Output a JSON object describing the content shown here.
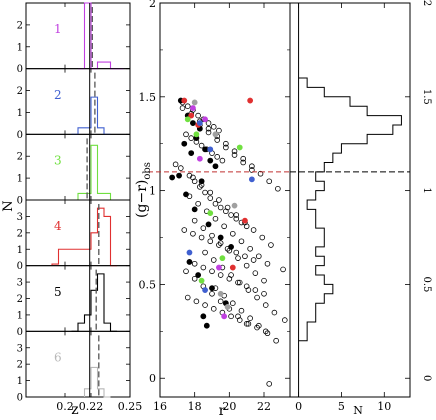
{
  "chart_data": [
    {
      "type": "bar",
      "layout": "stacked-histogram-panels",
      "title": "",
      "xlabel": "z",
      "ylabel": "N",
      "xlim": [
        0.17,
        0.25
      ],
      "x_ticks": [
        0.2,
        0.22,
        0.25
      ],
      "x_tick_labels": [
        "0.2",
        "0.22",
        "0.25"
      ],
      "bin_width": 0.005,
      "panels": [
        {
          "label": "1",
          "color": "#c040e0",
          "ylim": [
            0,
            3
          ],
          "y_ticks": [
            0,
            1,
            2
          ],
          "line_z": 0.219,
          "dash_z": 0.221,
          "bins_z": [
            0.21,
            0.215,
            0.22,
            0.225,
            0.23,
            0.235,
            0.24
          ],
          "counts": [
            0,
            3,
            0,
            0.3,
            0.3,
            0,
            0
          ]
        },
        {
          "label": "2",
          "color": "#4060d0",
          "ylim": [
            0,
            3
          ],
          "y_ticks": [
            0,
            1,
            2
          ],
          "line_z": 0.219,
          "dash_z": 0.223,
          "bins_z": [
            0.205,
            0.21,
            0.215,
            0.22,
            0.225,
            0.23
          ],
          "counts": [
            0,
            0.3,
            0.3,
            1.7,
            0.3,
            0
          ]
        },
        {
          "label": "3",
          "color": "#70e040",
          "ylim": [
            0,
            3
          ],
          "y_ticks": [
            0,
            1,
            2
          ],
          "line_z": 0.219,
          "dash_z": 0.217,
          "bins_z": [
            0.205,
            0.21,
            0.215,
            0.22,
            0.225,
            0.23,
            0.235
          ],
          "counts": [
            0,
            0.3,
            0.3,
            2.5,
            0.3,
            0.3,
            0
          ]
        },
        {
          "label": "4",
          "color": "#e03030",
          "ylim": [
            0,
            4
          ],
          "y_ticks": [
            0,
            1,
            2,
            3
          ],
          "line_z": 0.219,
          "dash_z": 0.226,
          "bins_z": [
            0.19,
            0.195,
            0.2,
            0.205,
            0.21,
            0.215,
            0.22,
            0.225,
            0.23,
            0.235
          ],
          "counts": [
            0.1,
            1,
            1,
            1,
            1,
            1,
            2,
            3.5,
            3,
            0
          ]
        },
        {
          "label": "5",
          "color": "#000000",
          "ylim": [
            0,
            4
          ],
          "y_ticks": [
            0,
            1,
            2,
            3
          ],
          "line_z": 0.219,
          "dash_z": 0.224,
          "bins_z": [
            0.205,
            0.21,
            0.215,
            0.22,
            0.225,
            0.23,
            0.235
          ],
          "counts": [
            0,
            0.5,
            1,
            2.5,
            3.5,
            0.5,
            0
          ]
        },
        {
          "label": "6",
          "color": "#b8b8b8",
          "ylim": [
            0,
            4
          ],
          "y_ticks": [
            0,
            1,
            2,
            3
          ],
          "line_z": 0.219,
          "dash_z": 0.226,
          "bins_z": [
            0.215,
            0.22,
            0.225,
            0.23
          ],
          "counts": [
            0.5,
            1.8,
            0.5,
            0
          ]
        }
      ]
    },
    {
      "type": "scatter",
      "title": "",
      "xlabel": "r",
      "ylabel": "(g−r)",
      "ylabel_subscript": "obs",
      "xlim": [
        16,
        23.5
      ],
      "ylim": [
        -0.1,
        2
      ],
      "x_ticks": [
        16,
        18,
        20,
        22
      ],
      "x_tick_labels": [
        "16",
        "18",
        "20",
        "22"
      ],
      "y_ticks": [
        0,
        0.5,
        1,
        1.5,
        2
      ],
      "y_tick_labels": [
        "0",
        "0.5",
        "1",
        "1.5",
        "2"
      ],
      "threshold_y": 1.1,
      "threshold_color": "#c03030",
      "series": [
        {
          "marker": "open-circle",
          "color": "#000000",
          "x": [
            17.3,
            17.6,
            17.9,
            18.2,
            18.5,
            18.8,
            19.1,
            19.4,
            17.5,
            17.8,
            18.1,
            18.4,
            18.7,
            19.0,
            19.3,
            19.6,
            16.9,
            17.2,
            17.7,
            18.0,
            18.3,
            18.6,
            18.9,
            19.2,
            19.5,
            19.8,
            20.1,
            20.4,
            20.7,
            21.0,
            17.4,
            17.9,
            18.4,
            18.9,
            19.4,
            19.9,
            20.4,
            20.9,
            21.4,
            18.0,
            18.5,
            19.0,
            19.5,
            20.0,
            20.5,
            21.0,
            21.5,
            22.0,
            17.6,
            18.1,
            18.6,
            19.1,
            19.6,
            20.1,
            20.6,
            21.1,
            21.6,
            22.1,
            17.3,
            17.8,
            18.3,
            18.8,
            19.3,
            19.8,
            20.3,
            20.8,
            21.3,
            21.8,
            22.3,
            22.8,
            17.7,
            18.2,
            18.7,
            19.2,
            19.7,
            20.2,
            20.7,
            21.2,
            21.7,
            22.2,
            17.5,
            18.0,
            18.5,
            19.0,
            19.5,
            20.0,
            20.5,
            21.0,
            18.3,
            18.8,
            19.3,
            19.8,
            20.3,
            20.8,
            21.3,
            17.9,
            18.4,
            18.9,
            19.4,
            19.9,
            20.4,
            20.9,
            21.4,
            21.9,
            22.4,
            18.6,
            19.1,
            19.6,
            20.1,
            20.6,
            21.1,
            21.6,
            22.1,
            22.6,
            23.2,
            18.0,
            18.5,
            19.0,
            19.5,
            20.0,
            20.5,
            21.0,
            21.5,
            22.0,
            19.2,
            19.7,
            20.2,
            20.7,
            21.2,
            21.7,
            22.2,
            22.7,
            23.1,
            22.3
          ],
          "y": [
            1.47,
            1.45,
            1.43,
            1.4,
            1.38,
            1.36,
            1.34,
            1.32,
            1.3,
            1.28,
            1.26,
            1.24,
            1.22,
            1.2,
            1.18,
            1.16,
            1.14,
            1.12,
            1.08,
            1.05,
            1.02,
            0.99,
            0.96,
            0.93,
            0.91,
            0.89,
            0.87,
            0.85,
            0.83,
            0.81,
            0.79,
            0.77,
            0.75,
            0.73,
            0.71,
            0.69,
            0.67,
            0.65,
            0.63,
            0.61,
            0.59,
            0.57,
            0.55,
            0.53,
            0.51,
            0.49,
            0.47,
            0.45,
            0.43,
            0.41,
            0.39,
            0.37,
            0.35,
            0.33,
            0.31,
            0.29,
            0.27,
            0.25,
            1.44,
            1.41,
            1.37,
            1.33,
            1.29,
            1.25,
            1.21,
            1.17,
            1.13,
            1.09,
            1.05,
            1.01,
            0.97,
            0.93,
            0.89,
            0.85,
            0.81,
            0.77,
            0.73,
            0.69,
            0.65,
            0.61,
            0.57,
            0.53,
            0.49,
            0.45,
            0.41,
            0.37,
            0.33,
            0.29,
            1.35,
            1.31,
            1.27,
            1.23,
            1.19,
            1.15,
            1.11,
            1.07,
            1.03,
            0.99,
            0.95,
            0.91,
            0.87,
            0.83,
            0.79,
            0.75,
            0.71,
            0.67,
            0.63,
            0.59,
            0.55,
            0.51,
            0.47,
            0.43,
            0.39,
            0.35,
            0.31,
            0.84,
            0.8,
            0.76,
            0.72,
            0.68,
            0.64,
            0.6,
            0.56,
            0.52,
            0.48,
            0.44,
            0.4,
            0.36,
            0.32,
            0.28,
            0.24,
            0.2,
            0.58,
            -0.03
          ]
        },
        {
          "marker": "filled-circle",
          "color": "#000000",
          "x": [
            17.2,
            17.6,
            17.9,
            18.3,
            18.1,
            17.4,
            18.6,
            17.8,
            18.9,
            19.2,
            17.1,
            18.4,
            16.7,
            17.5,
            18.0,
            18.8,
            19.5,
            20.1,
            17.7,
            18.2,
            19.0,
            19.8,
            18.5,
            18.7
          ],
          "y": [
            1.48,
            1.4,
            1.36,
            1.33,
            1.28,
            1.25,
            1.22,
            1.2,
            1.16,
            1.13,
            1.08,
            1.05,
            1.07,
            0.98,
            0.9,
            0.82,
            0.75,
            0.7,
            0.62,
            0.55,
            0.48,
            0.4,
            0.33,
            0.28
          ]
        },
        {
          "marker": "filled-circle",
          "color": "#e03030",
          "x": [
            17.4,
            17.8,
            18.2,
            21.2,
            20.9,
            20.2
          ],
          "y": [
            1.48,
            1.4,
            1.35,
            1.48,
            0.84,
            0.59
          ]
        },
        {
          "marker": "filled-circle",
          "color": "#4060d0",
          "x": [
            18.3,
            18.9,
            21.3,
            17.7,
            18.6
          ],
          "y": [
            1.36,
            1.22,
            1.06,
            0.67,
            0.47
          ]
        },
        {
          "marker": "filled-circle",
          "color": "#c040e0",
          "x": [
            17.9,
            18.6,
            18.3,
            19.4,
            19.7
          ],
          "y": [
            1.44,
            1.38,
            1.17,
            0.59,
            0.33
          ]
        },
        {
          "marker": "filled-circle",
          "color": "#70e040",
          "x": [
            17.6,
            18.1,
            20.6,
            18.9,
            19.6,
            18.4
          ],
          "y": [
            1.38,
            1.3,
            1.23,
            0.88,
            0.64,
            0.52
          ]
        },
        {
          "marker": "filled-circle",
          "color": "#a0a0a0",
          "x": [
            18.0,
            19.2,
            20.3,
            19.5,
            19.9
          ],
          "y": [
            1.47,
            1.3,
            0.92,
            0.45,
            0.38
          ]
        }
      ]
    },
    {
      "type": "bar",
      "orientation": "horizontal",
      "title": "",
      "xlabel": "N",
      "ylabel": "",
      "xlim": [
        -1,
        13
      ],
      "ylim": [
        -0.1,
        2
      ],
      "x_ticks": [
        0,
        5,
        10
      ],
      "x_tick_labels": [
        "0",
        "5",
        "10"
      ],
      "y_ticks": [
        0,
        0.5,
        1,
        1.5,
        2
      ],
      "y_tick_labels": [
        "0",
        "0.5",
        "1",
        "1.5",
        "2"
      ],
      "threshold_y": 1.1,
      "bin_height": 0.05,
      "bins_lo": [
        0.2,
        0.25,
        0.3,
        0.35,
        0.4,
        0.45,
        0.5,
        0.55,
        0.6,
        0.65,
        0.7,
        0.75,
        0.8,
        0.85,
        0.9,
        0.95,
        1.0,
        1.05,
        1.1,
        1.15,
        1.2,
        1.25,
        1.3,
        1.35,
        1.4,
        1.45,
        1.5,
        1.55
      ],
      "counts": [
        1,
        1,
        2,
        2,
        3,
        4,
        3,
        2,
        3,
        2,
        3,
        3,
        2,
        2,
        1,
        2,
        3,
        2,
        3,
        4,
        5,
        8,
        11,
        12,
        8,
        6,
        3,
        1
      ]
    }
  ]
}
